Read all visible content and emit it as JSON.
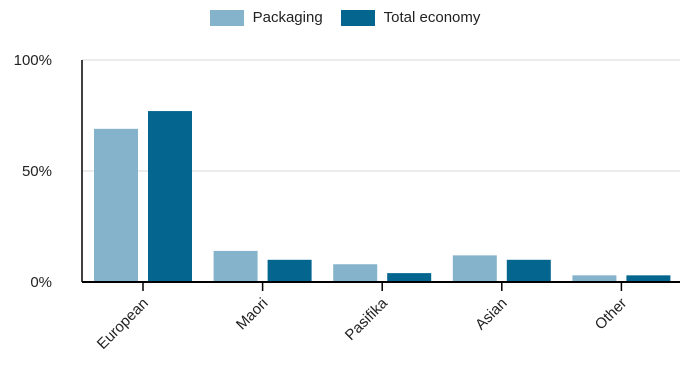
{
  "chart_data": {
    "type": "bar",
    "categories": [
      "European",
      "Maori",
      "Pasifika",
      "Asian",
      "Other"
    ],
    "series": [
      {
        "name": "Packaging",
        "values": [
          69,
          14,
          8,
          12,
          3
        ],
        "color": "#85b3cb"
      },
      {
        "name": "Total economy",
        "values": [
          77,
          10,
          4,
          10,
          3
        ],
        "color": "#04668f"
      }
    ],
    "ylim": [
      0,
      100
    ],
    "yticks": [
      {
        "value": 0,
        "label": "0%"
      },
      {
        "value": 50,
        "label": "50%"
      },
      {
        "value": 100,
        "label": "100%"
      }
    ],
    "grid": true,
    "legend_position": "top-center",
    "title": "",
    "xlabel": "",
    "ylabel": ""
  }
}
